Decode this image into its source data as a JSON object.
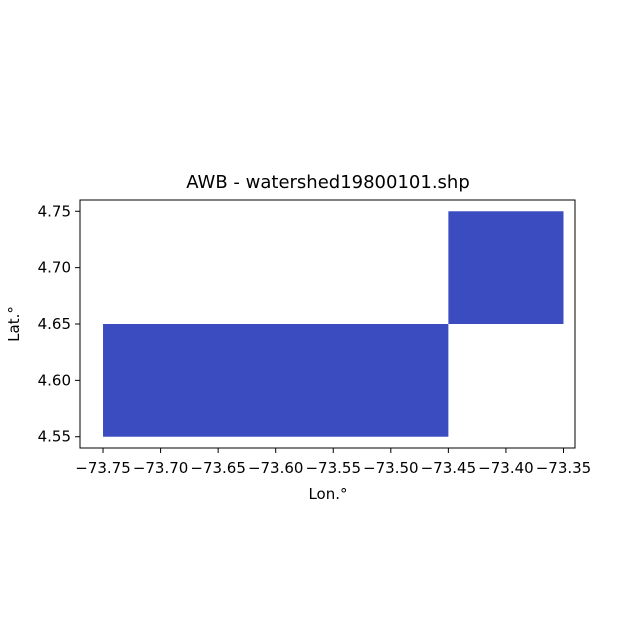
{
  "chart_data": {
    "type": "map",
    "title": "AWB - watershed19800101.shp",
    "xlabel": "Lon.°",
    "ylabel": "Lat.°",
    "xlim": [
      -73.77,
      -73.34
    ],
    "ylim": [
      4.54,
      4.76
    ],
    "x_ticks": [
      -73.75,
      -73.7,
      -73.65,
      -73.6,
      -73.55,
      -73.5,
      -73.45,
      -73.4,
      -73.35
    ],
    "x_tick_labels": [
      "−73.75",
      "−73.70",
      "−73.65",
      "−73.60",
      "−73.55",
      "−73.50",
      "−73.45",
      "−73.40",
      "−73.35"
    ],
    "y_ticks": [
      4.55,
      4.6,
      4.65,
      4.7,
      4.75
    ],
    "y_tick_labels": [
      "4.55",
      "4.60",
      "4.65",
      "4.70",
      "4.75"
    ],
    "fill_color": "#3b4cc0",
    "cells": [
      {
        "x0": -73.75,
        "x1": -73.45,
        "y0": 4.55,
        "y1": 4.65
      },
      {
        "x0": -73.45,
        "x1": -73.35,
        "y0": 4.65,
        "y1": 4.75
      }
    ]
  }
}
